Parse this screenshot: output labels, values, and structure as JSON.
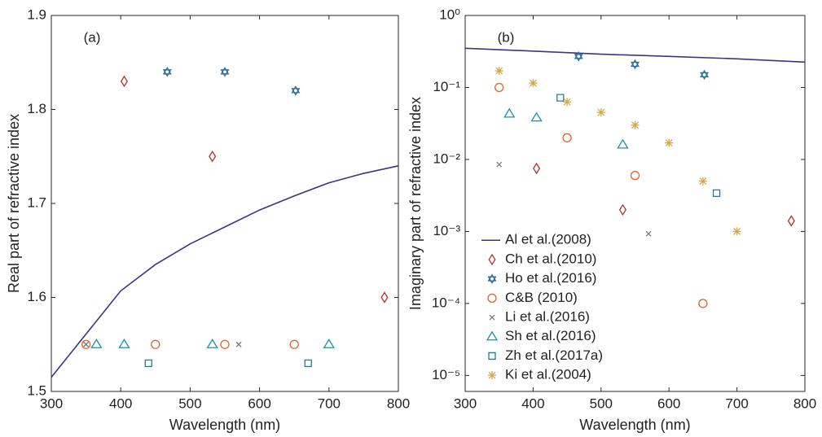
{
  "chart_data": [
    {
      "type": "scatter",
      "annotation": "(a)",
      "xlabel": "Wavelength (nm)",
      "ylabel": "Real part of refractive index",
      "xlim": [
        300,
        800
      ],
      "ylim": [
        1.5,
        1.9
      ],
      "xticks": [
        300,
        400,
        500,
        600,
        700,
        800
      ],
      "yticks": [
        1.5,
        1.6,
        1.7,
        1.8,
        1.9
      ],
      "series": [
        {
          "marker": "line",
          "color": "#3b3582",
          "x": [
            300,
            350,
            400,
            450,
            500,
            550,
            600,
            650,
            700,
            750,
            800
          ],
          "values": [
            1.515,
            1.561,
            1.607,
            1.635,
            1.657,
            1.675,
            1.693,
            1.708,
            1.722,
            1.732,
            1.74
          ]
        },
        {
          "marker": "diamond",
          "color": "#b5302a",
          "x": [
            405,
            532,
            780
          ],
          "values": [
            1.83,
            1.75,
            1.6
          ]
        },
        {
          "marker": "hexagram",
          "color": "#2a6f9a",
          "x": [
            467,
            550,
            652
          ],
          "values": [
            1.84,
            1.84,
            1.82
          ]
        },
        {
          "marker": "circle",
          "color": "#d9662a",
          "x": [
            350,
            450,
            550,
            650
          ],
          "values": [
            1.55,
            1.55,
            1.55,
            1.55
          ]
        },
        {
          "marker": "x",
          "color": "#7a7a7a",
          "x": [
            350,
            570
          ],
          "values": [
            1.55,
            1.55
          ]
        },
        {
          "marker": "triangle",
          "color": "#1f8fa6",
          "x": [
            365,
            405,
            532,
            700
          ],
          "values": [
            1.55,
            1.55,
            1.55,
            1.55
          ]
        },
        {
          "marker": "square",
          "color": "#1e7f8c",
          "x": [
            440,
            670
          ],
          "values": [
            1.53,
            1.53
          ]
        }
      ]
    },
    {
      "type": "scatter",
      "annotation": "(b)",
      "xlabel": "Wavelength (nm)",
      "ylabel": "Imaginary part of refractive index",
      "log_y": true,
      "legend": "lower left",
      "xlim": [
        300,
        800
      ],
      "ylim": [
        6e-06,
        1
      ],
      "xticks": [
        300,
        400,
        500,
        600,
        700,
        800
      ],
      "yticks": [
        {
          "value": 1e-05,
          "label": "10⁻⁵"
        },
        {
          "value": 0.0001,
          "label": "10⁻⁴"
        },
        {
          "value": 0.001,
          "label": "10⁻³"
        },
        {
          "value": 0.01,
          "label": "10⁻²"
        },
        {
          "value": 0.1,
          "label": "10⁻¹"
        },
        {
          "value": 1,
          "label": "10⁰"
        }
      ],
      "series": [
        {
          "name": "Al et al.(2008)",
          "marker": "line",
          "color": "#3b3582",
          "x": [
            300,
            400,
            500,
            600,
            700,
            800
          ],
          "values": [
            0.35,
            0.32,
            0.29,
            0.27,
            0.25,
            0.225
          ]
        },
        {
          "name": "Ch et al.(2010)",
          "marker": "diamond",
          "color": "#b5302a",
          "x": [
            405,
            532,
            780
          ],
          "values": [
            0.0075,
            0.002,
            0.0014
          ]
        },
        {
          "name": "Ho et al.(2016)",
          "marker": "hexagram",
          "color": "#2a6f9a",
          "x": [
            467,
            550,
            652
          ],
          "values": [
            0.27,
            0.21,
            0.15
          ]
        },
        {
          "name": "C&B (2010)",
          "marker": "circle",
          "color": "#d9662a",
          "x": [
            350,
            450,
            550,
            650
          ],
          "values": [
            0.1,
            0.02,
            0.006,
            0.0001
          ]
        },
        {
          "name": "Li et al.(2016)",
          "marker": "x",
          "color": "#7a7a7a",
          "x": [
            350,
            570
          ],
          "values": [
            0.0085,
            0.00093
          ]
        },
        {
          "name": "Sh et al.(2016)",
          "marker": "triangle",
          "color": "#1f8fa6",
          "x": [
            365,
            405,
            532
          ],
          "values": [
            0.043,
            0.038,
            0.016
          ]
        },
        {
          "name": "Zh et al.(2017a)",
          "marker": "square",
          "color": "#1e7f8c",
          "x": [
            440,
            670
          ],
          "values": [
            0.072,
            0.0034
          ]
        },
        {
          "name": "Ki et al.(2004)",
          "marker": "asterisk",
          "color": "#d4a84a",
          "x": [
            350,
            400,
            450,
            500,
            550,
            600,
            650,
            700
          ],
          "values": [
            0.17,
            0.115,
            0.063,
            0.045,
            0.03,
            0.017,
            0.005,
            0.001
          ]
        }
      ]
    }
  ]
}
